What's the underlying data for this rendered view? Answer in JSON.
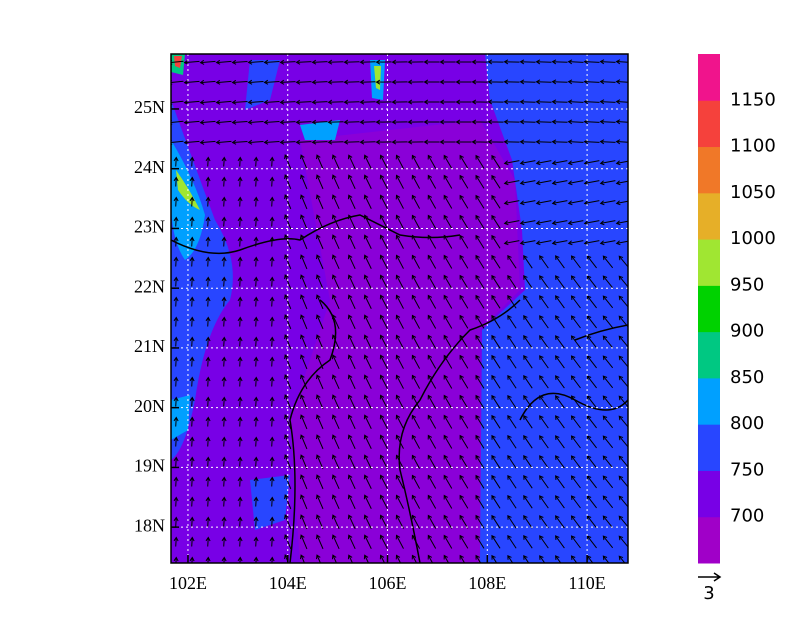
{
  "map": {
    "xlim": [
      101.66,
      110.82
    ],
    "ylim": [
      17.4,
      25.92
    ],
    "xticks": [
      {
        "value": 102,
        "label": "102E"
      },
      {
        "value": 104,
        "label": "104E"
      },
      {
        "value": 106,
        "label": "106E"
      },
      {
        "value": 108,
        "label": "108E"
      },
      {
        "value": 110,
        "label": "110E"
      }
    ],
    "yticks": [
      {
        "value": 18,
        "label": "18N"
      },
      {
        "value": 19,
        "label": "19N"
      },
      {
        "value": 20,
        "label": "20N"
      },
      {
        "value": 21,
        "label": "21N"
      },
      {
        "value": 22,
        "label": "22N"
      },
      {
        "value": 23,
        "label": "23N"
      },
      {
        "value": 24,
        "label": "24N"
      },
      {
        "value": 25,
        "label": "25N"
      }
    ],
    "grid": true,
    "colorbar": {
      "levels": [
        700,
        750,
        800,
        850,
        900,
        950,
        1000,
        1050,
        1100,
        1150
      ],
      "colors": [
        "#a000c8",
        "#7800e6",
        "#2846ff",
        "#00a0ff",
        "#00c882",
        "#00d200",
        "#a0e632",
        "#e6af28",
        "#f07828",
        "#f5413c",
        "#f0148c"
      ]
    },
    "reference_vector": {
      "label": "3"
    }
  }
}
